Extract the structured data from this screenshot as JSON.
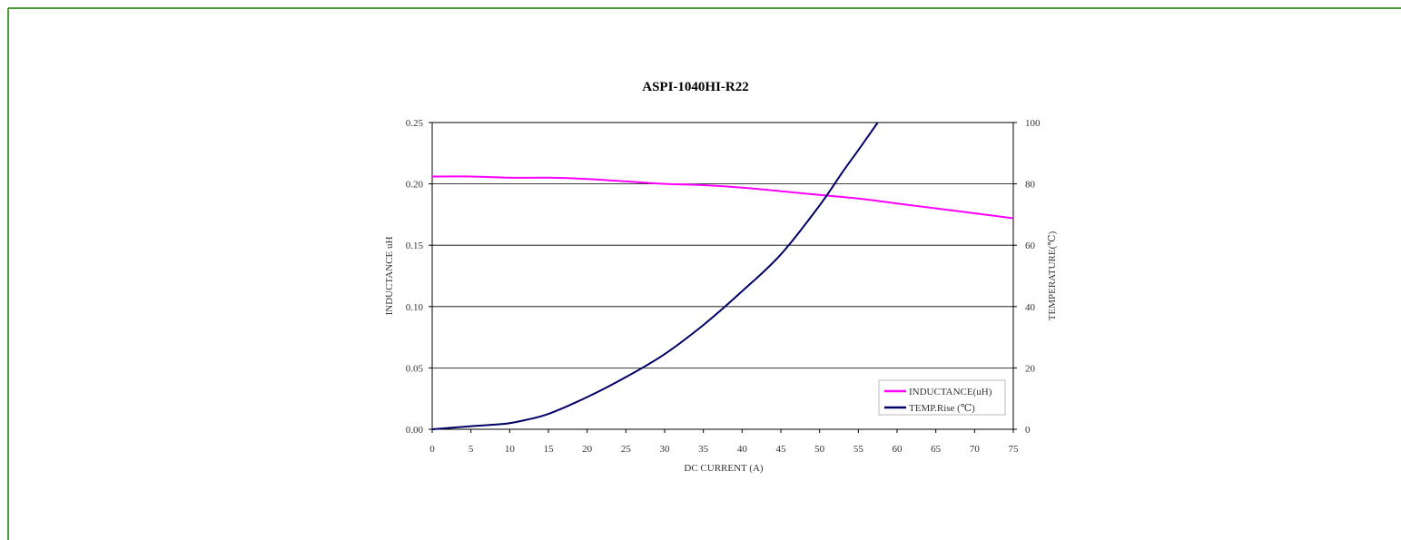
{
  "chart_data": {
    "type": "line",
    "title": "ASPI-1040HI-R22",
    "xlabel": "DC CURRENT (A)",
    "ylabel_left": "INDUCTANCE uH",
    "ylabel_right": "TEMPERATURE(℃)",
    "xlim": [
      0,
      75
    ],
    "ylim_left": [
      0,
      0.25
    ],
    "ylim_right": [
      0,
      100
    ],
    "x_ticks": [
      "0",
      "5",
      "10",
      "15",
      "20",
      "25",
      "30",
      "35",
      "40",
      "45",
      "50",
      "55",
      "60",
      "65",
      "70",
      "75"
    ],
    "y_left_ticks": [
      "0.00",
      "0.05",
      "0.10",
      "0.15",
      "0.20",
      "0.25"
    ],
    "y_right_ticks": [
      "0",
      "20",
      "40",
      "60",
      "80",
      "100"
    ],
    "grid": "horizontal",
    "legend_position": "bottom-right",
    "series": [
      {
        "name": "INDUCTANCE(uH)",
        "axis": "left",
        "color": "#ff00ff",
        "x": [
          0,
          5,
          10,
          15,
          20,
          25,
          30,
          35,
          40,
          45,
          50,
          55,
          60,
          65,
          70,
          75
        ],
        "y": [
          0.206,
          0.206,
          0.205,
          0.205,
          0.204,
          0.202,
          0.2,
          0.199,
          0.197,
          0.194,
          0.191,
          0.188,
          0.184,
          0.18,
          0.176,
          0.172
        ]
      },
      {
        "name": "TEMP.Rise (℃)",
        "axis": "right",
        "color": "#000066",
        "x": [
          0,
          5,
          8,
          10,
          12,
          15,
          20,
          25,
          30,
          35,
          40,
          45,
          50,
          53,
          55,
          57.5
        ],
        "y": [
          0,
          1,
          1.5,
          2,
          3,
          5,
          10.5,
          17,
          24.5,
          34,
          45,
          57,
          73,
          84,
          91,
          100
        ]
      }
    ]
  }
}
